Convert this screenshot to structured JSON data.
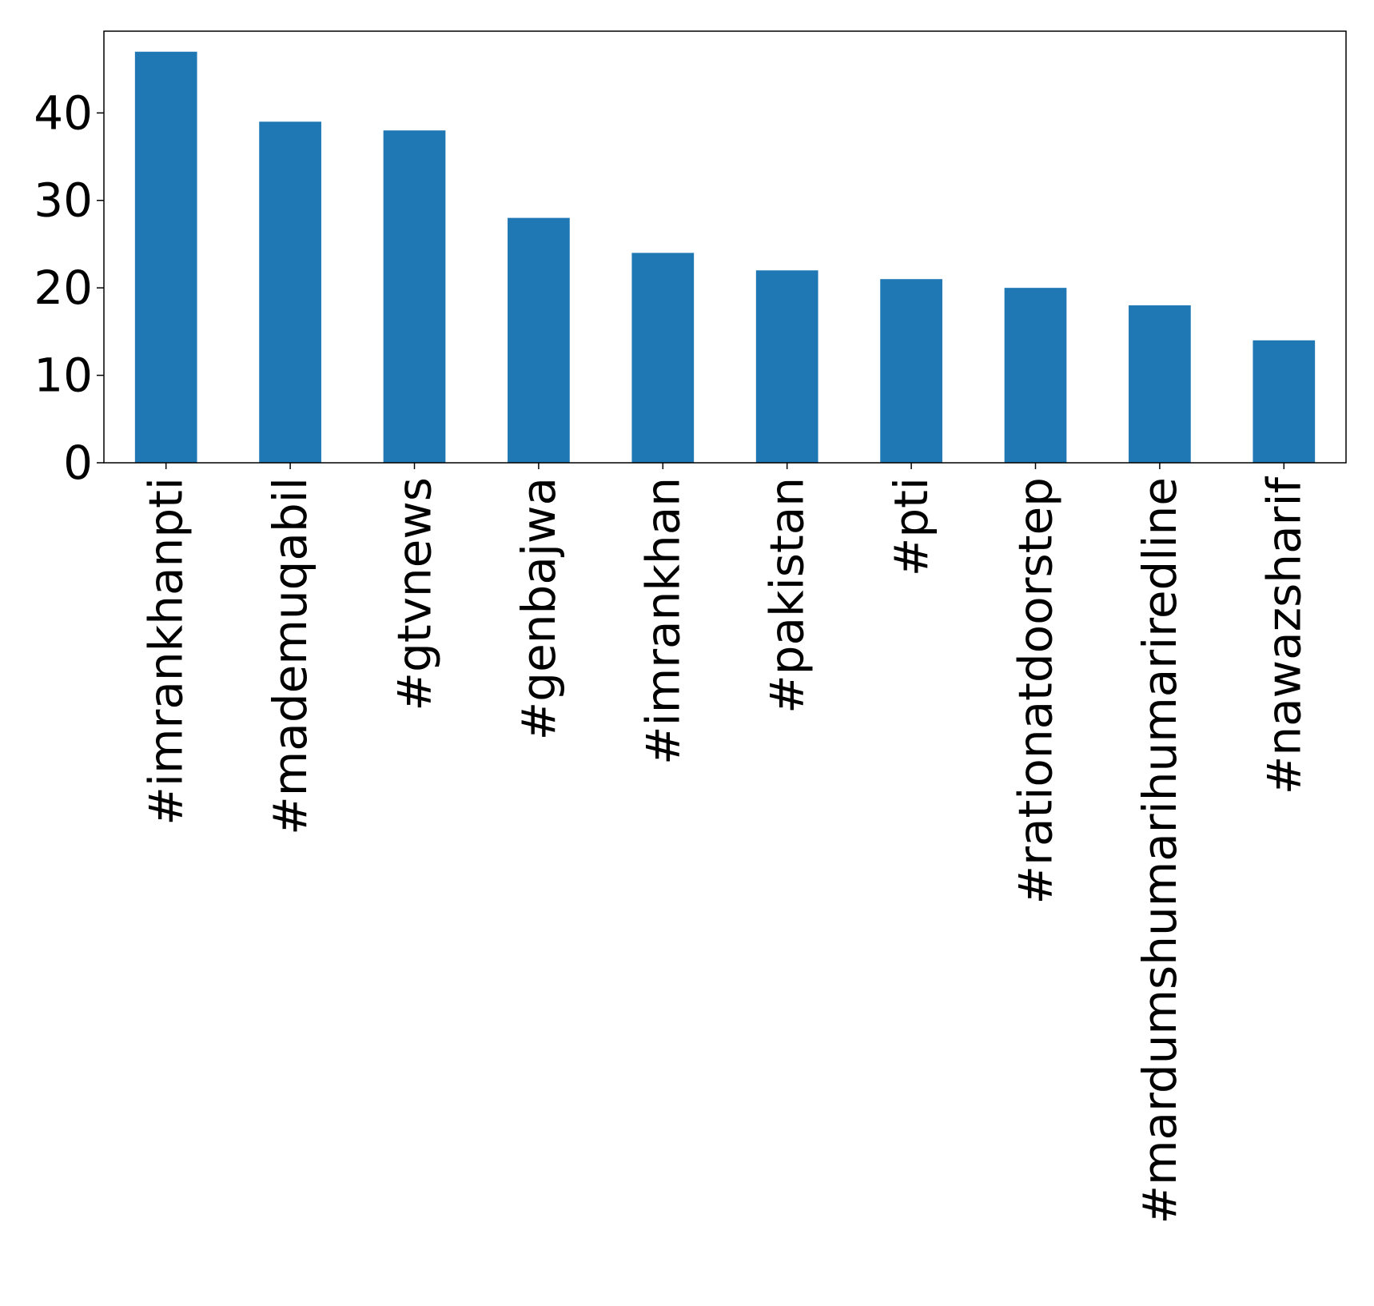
{
  "chart_data": {
    "type": "bar",
    "title": "",
    "xlabel": "",
    "ylabel": "",
    "categories": [
      "#imrankhanpti",
      "#mademuqabil",
      "#gtvnews",
      "#genbajwa",
      "#imrankhan",
      "#pakistan",
      "#pti",
      "#rationatdoorstep",
      "#mardumshumarihumariredline",
      "#nawazsharif"
    ],
    "values": [
      47,
      39,
      38,
      28,
      24,
      22,
      21,
      20,
      18,
      14
    ],
    "ylim": [
      0,
      49.35
    ],
    "yticks": [
      0,
      10,
      20,
      30,
      40
    ],
    "grid": false,
    "legend": "none",
    "colors": {
      "bar": "#1f77b4",
      "axis": "#000000",
      "background": "#ffffff"
    }
  }
}
